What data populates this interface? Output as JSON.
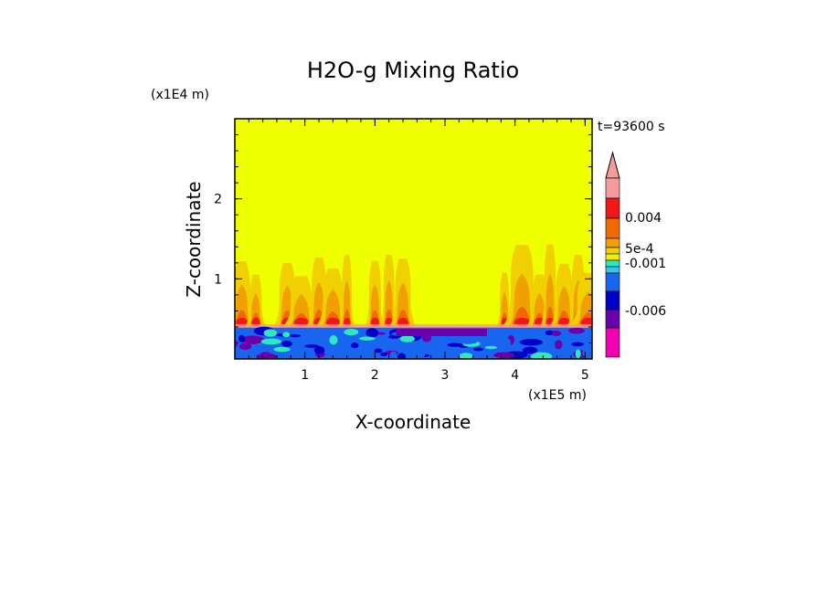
{
  "chart_data": {
    "type": "heatmap",
    "title": "H2O-g Mixing Ratio",
    "xlabel": "X-coordinate",
    "ylabel": "Z-coordinate",
    "x_scale_label": "(x1E5 m)",
    "y_scale_label": "(x1E4 m)",
    "time_label": "t=93600 s",
    "xlim": [
      0,
      5.1
    ],
    "ylim": [
      0,
      3.0
    ],
    "x_ticks": [
      "1",
      "2",
      "3",
      "4",
      "5"
    ],
    "x_tick_values": [
      1,
      2,
      3,
      4,
      5
    ],
    "y_ticks": [
      "1",
      "2"
    ],
    "y_tick_values": [
      1,
      2
    ],
    "colorbar": {
      "labels": [
        "0.004",
        "5e-4",
        "-0.001",
        "-0.006"
      ],
      "colors_top_to_bottom": [
        "#f49c9c",
        "#f01818",
        "#f06a00",
        "#f0a000",
        "#f0d000",
        "#f0f000",
        "#30e8c0",
        "#1866f0",
        "#0000c8",
        "#6a00aa",
        "#a000b0",
        "#f000b0"
      ]
    },
    "fields": {
      "background_color": "#f0ff00",
      "surface_layer_top": 0.4,
      "plume_columns_x": [
        0.1,
        0.3,
        0.75,
        0.95,
        1.2,
        1.4,
        1.6,
        2.0,
        2.2,
        2.4,
        3.85,
        4.1,
        4.35,
        4.5,
        4.7,
        4.9,
        5.05
      ]
    }
  }
}
